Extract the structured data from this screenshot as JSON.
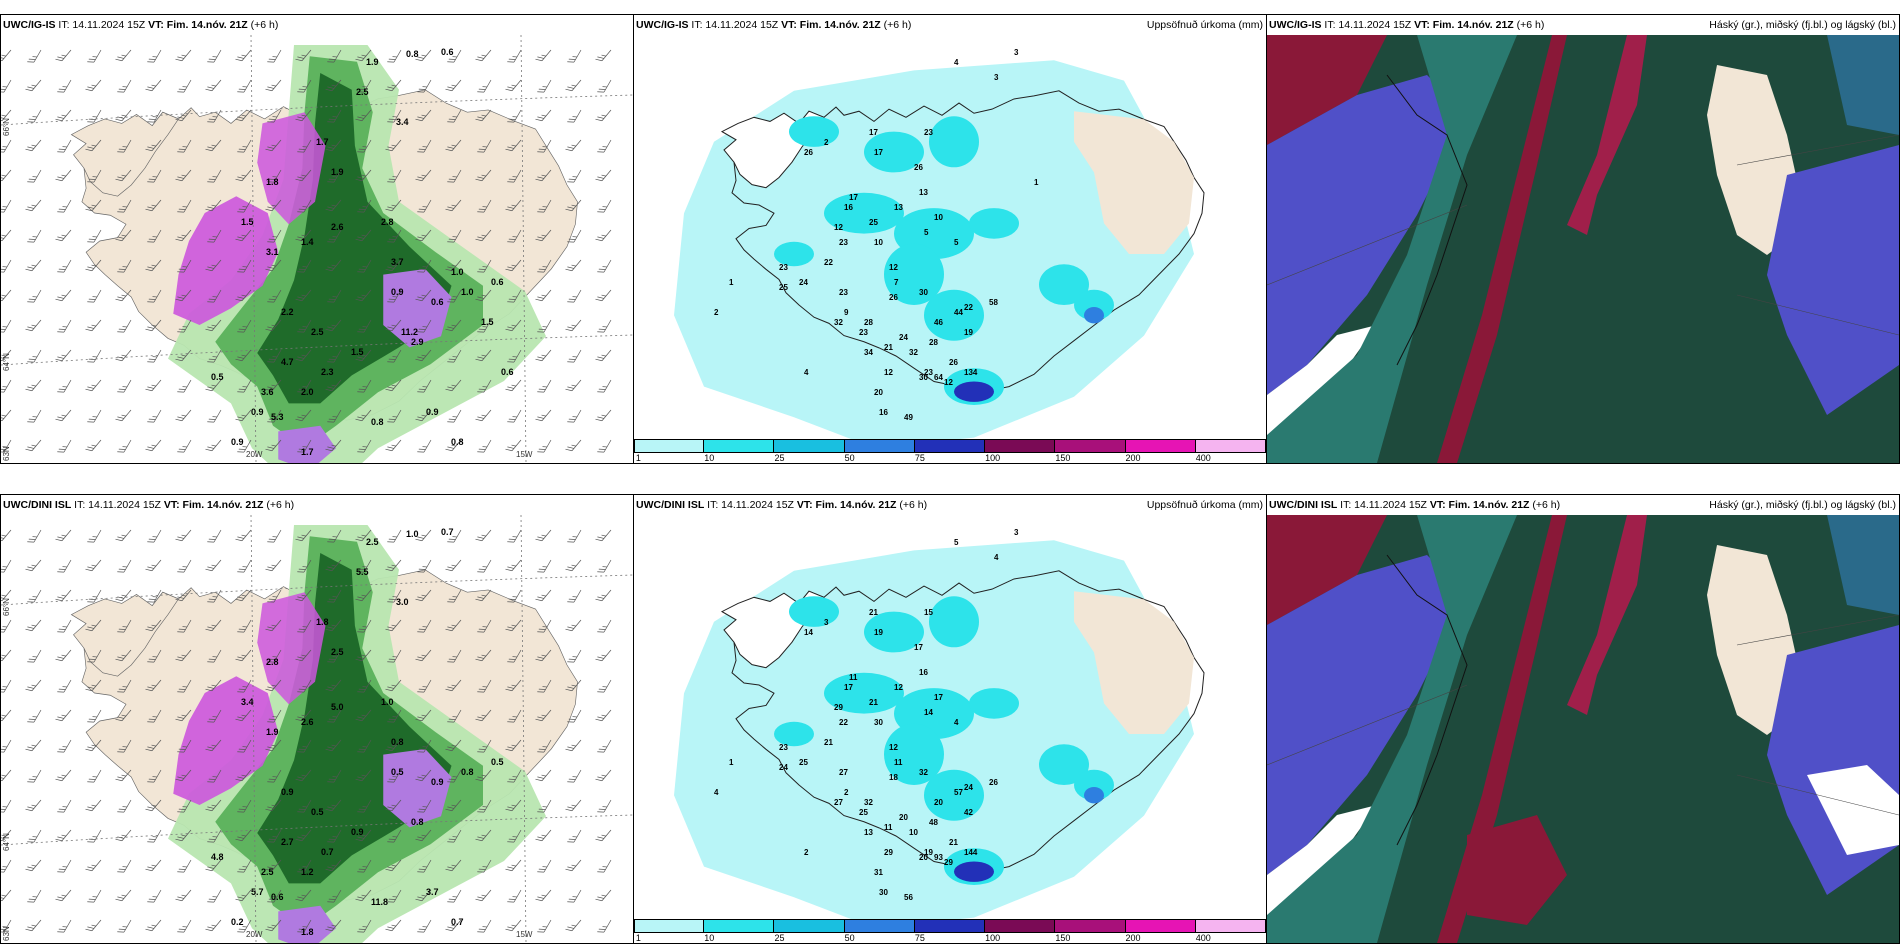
{
  "rows": [
    {
      "model": "UWC/IG-IS",
      "left_title": {
        "model": "UWC/IG-IS",
        "it": "IT: 14.11.2024 15Z",
        "vt": "VT: Fim. 14.nóv. 21Z",
        "lead": "(+6 h)"
      },
      "mid_title": {
        "model": "UWC/IG-IS",
        "it": "IT: 14.11.2024 15Z",
        "vt": "VT: Fim. 14.nóv. 21Z",
        "lead": "(+6 h)",
        "right": "Uppsöfnuð úrkoma (mm)"
      },
      "right_title": {
        "model": "UWC/IG-IS",
        "it": "IT: 14.11.2024 15Z",
        "vt": "VT: Fim. 14.nóv. 21Z",
        "lead": "(+6 h)",
        "right": "Háský (gr.), miðský (fj.bl.) og lágský (bl.)"
      },
      "precip_values": [
        "26",
        "17",
        "23",
        "17",
        "26",
        "13",
        "12",
        "16",
        "25",
        "10",
        "10",
        "17",
        "13",
        "5",
        "12",
        "7",
        "23",
        "22",
        "25",
        "23",
        "24",
        "23",
        "26",
        "30",
        "22",
        "58",
        "44",
        "46",
        "19",
        "28",
        "32",
        "23",
        "24",
        "21",
        "23",
        "12",
        "30",
        "20",
        "16",
        "49",
        "28",
        "34",
        "32",
        "12",
        "64",
        "26",
        "134",
        "5",
        "9",
        "1",
        "2",
        "4",
        "2",
        "3",
        "3",
        "4",
        "1"
      ],
      "wind_precip_values": [
        "0.8",
        "0.6",
        "1.9",
        "2.5",
        "3.4",
        "1.7",
        "1.9",
        "1.8",
        "1.5",
        "2.6",
        "1.4",
        "3.1",
        "2.8",
        "3.7",
        "2.2",
        "0.9",
        "0.6",
        "1.0",
        "0.6",
        "2.5",
        "1.5",
        "4.7",
        "2.3",
        "2.0",
        "0.5",
        "0.9",
        "0.8",
        "0.9",
        "0.9",
        "0.8",
        "1.7",
        "3.6",
        "5.3",
        "2.9",
        "0.6",
        "1.0",
        "11.2",
        "1.5"
      ]
    },
    {
      "model": "UWC/DINI ISL",
      "left_title": {
        "model": "UWC/DINI ISL",
        "it": "IT: 14.11.2024 15Z",
        "vt": "VT: Fim. 14.nóv. 21Z",
        "lead": "(+6 h)"
      },
      "mid_title": {
        "model": "UWC/DINI ISL",
        "it": "IT: 14.11.2024 15Z",
        "vt": "VT: Fim. 14.nóv. 21Z",
        "lead": "(+6 h)",
        "right": "Uppsöfnuð úrkoma (mm)"
      },
      "right_title": {
        "model": "UWC/DINI ISL",
        "it": "IT: 14.11.2024 15Z",
        "vt": "VT: Fim. 14.nóv. 21Z",
        "lead": "(+6 h)",
        "right": "Háský (gr.), miðský (fj.bl.) og lágský (bl.)"
      },
      "precip_values": [
        "14",
        "21",
        "15",
        "19",
        "17",
        "16",
        "29",
        "17",
        "21",
        "30",
        "17",
        "11",
        "12",
        "14",
        "12",
        "11",
        "22",
        "21",
        "24",
        "23",
        "25",
        "27",
        "18",
        "32",
        "24",
        "26",
        "57",
        "20",
        "42",
        "48",
        "27",
        "25",
        "20",
        "11",
        "19",
        "29",
        "20",
        "31",
        "30",
        "56",
        "32",
        "13",
        "10",
        "29",
        "93",
        "21",
        "144",
        "4",
        "2",
        "1",
        "4",
        "2",
        "3",
        "3",
        "4",
        "5"
      ],
      "wind_precip_values": [
        "1.0",
        "0.7",
        "2.5",
        "5.5",
        "3.0",
        "1.8",
        "2.5",
        "2.8",
        "3.4",
        "5.0",
        "2.6",
        "1.9",
        "1.0",
        "0.8",
        "0.9",
        "0.5",
        "0.9",
        "0.8",
        "0.5",
        "0.5",
        "0.9",
        "2.7",
        "0.7",
        "1.2",
        "4.8",
        "5.7",
        "11.8",
        "3.7",
        "0.2",
        "0.7",
        "1.8",
        "2.5",
        "0.6",
        "0.8"
      ]
    }
  ],
  "map_labels": {
    "lat66": "66°N",
    "lat64": "64°N",
    "lon20": "20W",
    "lon15": "15W",
    "lat63": "63N"
  },
  "colorbar": {
    "ticks": [
      "1",
      "10",
      "25",
      "50",
      "75",
      "100",
      "150",
      "200",
      "400"
    ],
    "colors": [
      "#b8f5f7",
      "#2de3ea",
      "#19bfe0",
      "#2e7fe0",
      "#2230b8",
      "#7a0a55",
      "#a8107a",
      "#e614b4",
      "#f5b4f0"
    ]
  },
  "colors": {
    "land": "#f2e6d6",
    "sea_precip": "#b8f5f7",
    "green_light": "#b8e6b0",
    "green_mid": "#5fb45f",
    "green_dark": "#1f6b2a",
    "purple": "#cc55dd",
    "cloud_high": "#8a1838",
    "cloud_mid": "#1e4a3c",
    "cloud_low": "#5050c8",
    "cloud_teal": "#2a7a70"
  }
}
